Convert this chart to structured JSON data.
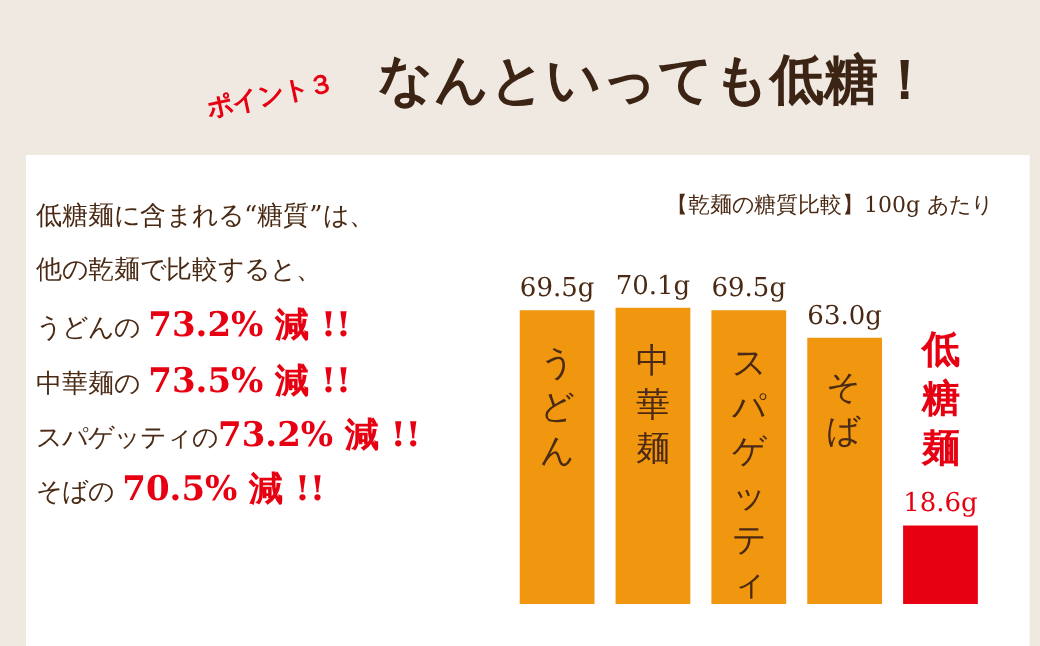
{
  "chart_data": {
    "type": "bar",
    "title": "なんといっても低糖！",
    "subtitle": "【乾麺の糖質比較】100g あたり",
    "categories": [
      "うどん",
      "中華麺",
      "スパゲッティ",
      "そば",
      "低糖麺"
    ],
    "values": [
      69.5,
      70.1,
      69.5,
      63.0,
      18.6
    ],
    "colors": [
      "#f0960f",
      "#f0960f",
      "#f0960f",
      "#f0960f",
      "#e60012"
    ],
    "value_labels": [
      "69.5g",
      "70.1g",
      "69.5g",
      "63.0g",
      "18.6g"
    ],
    "annotations": [
      "ポイント３",
      "低糖麺に含まれる“糖質”は、",
      "他の乾麺で比較すると、",
      "うどんの 73.2% 減 !!",
      "中華麺の 73.5% 減 !!",
      "スパゲッティの73.2% 減 !!",
      "そばの 70.5% 減 !!"
    ]
  }
}
